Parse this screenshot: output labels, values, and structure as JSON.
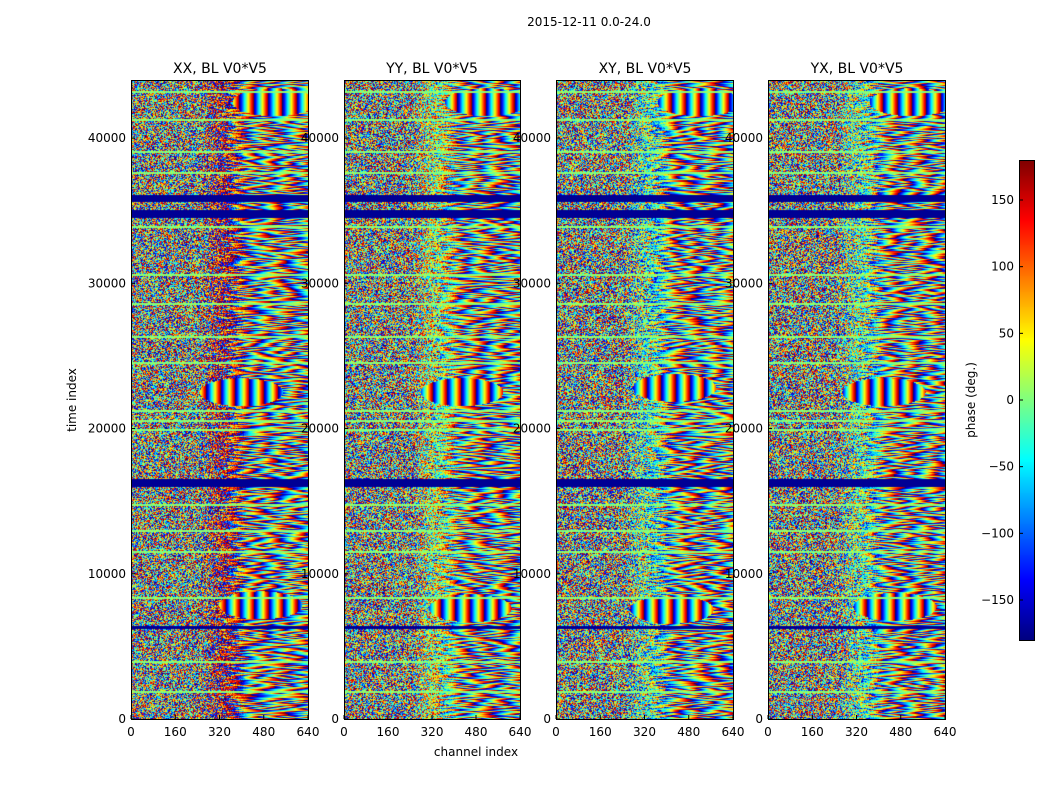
{
  "chart_data": {
    "type": "heatmap",
    "suptitle": "2015-12-11 0.0-24.0",
    "xlabel": "channel index",
    "ylabel": "time index",
    "colorbar_label": "phase (deg.)",
    "colormap": "jet",
    "clim": [
      -180,
      180
    ],
    "colorbar_ticks": [
      150,
      100,
      50,
      0,
      -50,
      -100,
      -150
    ],
    "colorbar_tick_labels": [
      "150",
      "100",
      "50",
      "0",
      "−50",
      "−100",
      "−150"
    ],
    "xlim": [
      0,
      640
    ],
    "ylim": [
      0,
      44000
    ],
    "xticks": [
      0,
      160,
      320,
      480,
      640
    ],
    "xtick_labels": [
      "0",
      "160",
      "320",
      "480",
      "640"
    ],
    "yticks": [
      0,
      10000,
      20000,
      30000,
      40000
    ],
    "ytick_labels": [
      "0",
      "10000",
      "20000",
      "30000",
      "40000"
    ],
    "panels": [
      {
        "title": "XX, BL V0*V5",
        "pol": "XX",
        "phase_offset_deg": 160,
        "fringe_regions": [
          {
            "t_center": 42500,
            "ch_center": 520
          },
          {
            "t_center": 22500,
            "ch_center": 400
          },
          {
            "t_center": 7800,
            "ch_center": 470
          }
        ]
      },
      {
        "title": "YY, BL V0*V5",
        "pol": "YY",
        "phase_offset_deg": 15,
        "fringe_regions": [
          {
            "t_center": 42500,
            "ch_center": 520
          },
          {
            "t_center": 22500,
            "ch_center": 430
          },
          {
            "t_center": 7600,
            "ch_center": 460
          }
        ]
      },
      {
        "title": "XY, BL V0*V5",
        "pol": "XY",
        "phase_offset_deg": -20,
        "fringe_regions": [
          {
            "t_center": 42500,
            "ch_center": 520
          },
          {
            "t_center": 22800,
            "ch_center": 430
          },
          {
            "t_center": 7500,
            "ch_center": 420
          }
        ]
      },
      {
        "title": "YX, BL V0*V5",
        "pol": "YX",
        "phase_offset_deg": -10,
        "fringe_regions": [
          {
            "t_center": 42500,
            "ch_center": 520
          },
          {
            "t_center": 22500,
            "ch_center": 420
          },
          {
            "t_center": 7700,
            "ch_center": 460
          }
        ]
      }
    ],
    "flagged_time_bands": [
      {
        "t0": 34500,
        "t1": 35100
      },
      {
        "t0": 35600,
        "t1": 36100
      },
      {
        "t0": 16000,
        "t1": 16500
      },
      {
        "t0": 6200,
        "t1": 6400
      }
    ],
    "gap_lines_time": [
      1800,
      3900,
      8300,
      11500,
      12900,
      14700,
      19900,
      20500,
      21200,
      24500,
      26300,
      28600,
      30600,
      33900,
      37600,
      39100,
      41300,
      43200
    ]
  }
}
